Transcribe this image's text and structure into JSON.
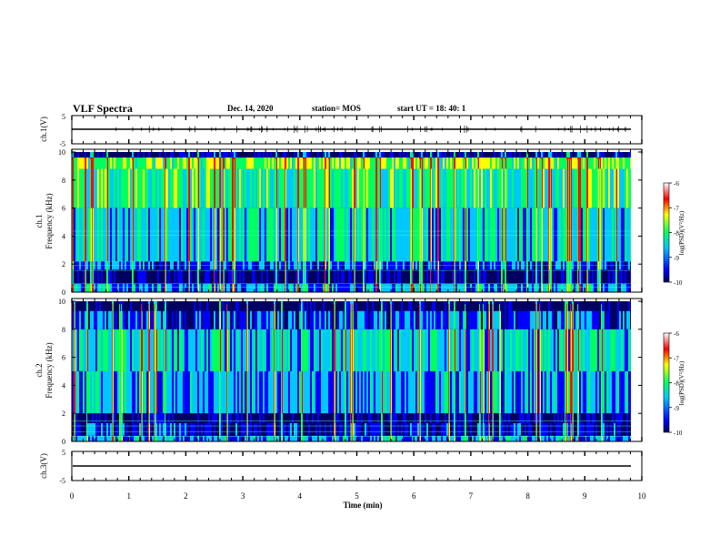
{
  "header": {
    "title": "VLF Spectra",
    "date": "Dec. 14, 2020",
    "station": "station= MOS",
    "start_ut": "start  UT  =   18: 40: 1"
  },
  "chart_data": [
    {
      "panel": "ch1-waveform",
      "type": "line",
      "ylabel": "ch.1(V)",
      "ylim": [
        -5,
        5
      ],
      "yticks": [
        "5",
        "-5"
      ],
      "x_range": [
        0,
        9.83
      ],
      "y_level": 0
    },
    {
      "panel": "ch1-spectrogram",
      "type": "heatmap",
      "ylabel": [
        "ch.1",
        "Frequency  (kHz)"
      ],
      "ylim": [
        0,
        10
      ],
      "yticks": [
        "0",
        "2",
        "4",
        "6",
        "8",
        "10"
      ],
      "x_range": [
        0,
        9.83
      ],
      "colorbar": {
        "label": "log(PSD)(V²/Hz)",
        "ticks": [
          "-6",
          "-7",
          "-8",
          "-9",
          "-10"
        ],
        "range": [
          -10,
          -6
        ]
      }
    },
    {
      "panel": "ch2-spectrogram",
      "type": "heatmap",
      "ylabel": [
        "ch.2",
        "Frequency  (kHz)"
      ],
      "ylim": [
        0,
        10
      ],
      "yticks": [
        "0",
        "2",
        "4",
        "6",
        "8",
        "10"
      ],
      "x_range": [
        0,
        9.83
      ],
      "colorbar": {
        "label": "log(PSD)(V²/Hz)",
        "ticks": [
          "-6",
          "-7",
          "-8",
          "-9",
          "-10"
        ],
        "range": [
          -10,
          -6
        ]
      }
    },
    {
      "panel": "ch3-waveform",
      "type": "line",
      "ylabel": "ch.3(V)",
      "ylim": [
        -5,
        5
      ],
      "yticks": [
        "5",
        "-5"
      ],
      "x_range": [
        0,
        9.83
      ],
      "y_level": 0
    }
  ],
  "x_axis": {
    "label": "Time  (min)",
    "range": [
      0,
      10
    ],
    "ticks": [
      "0",
      "1",
      "2",
      "3",
      "4",
      "5",
      "6",
      "7",
      "8",
      "9",
      "10"
    ]
  },
  "colors": {
    "dark_bg": "#000018",
    "colormap": [
      "#000060",
      "#0000ff",
      "#00c8ff",
      "#00ff60",
      "#ffff00",
      "#ff0000",
      "#ffffff"
    ]
  }
}
